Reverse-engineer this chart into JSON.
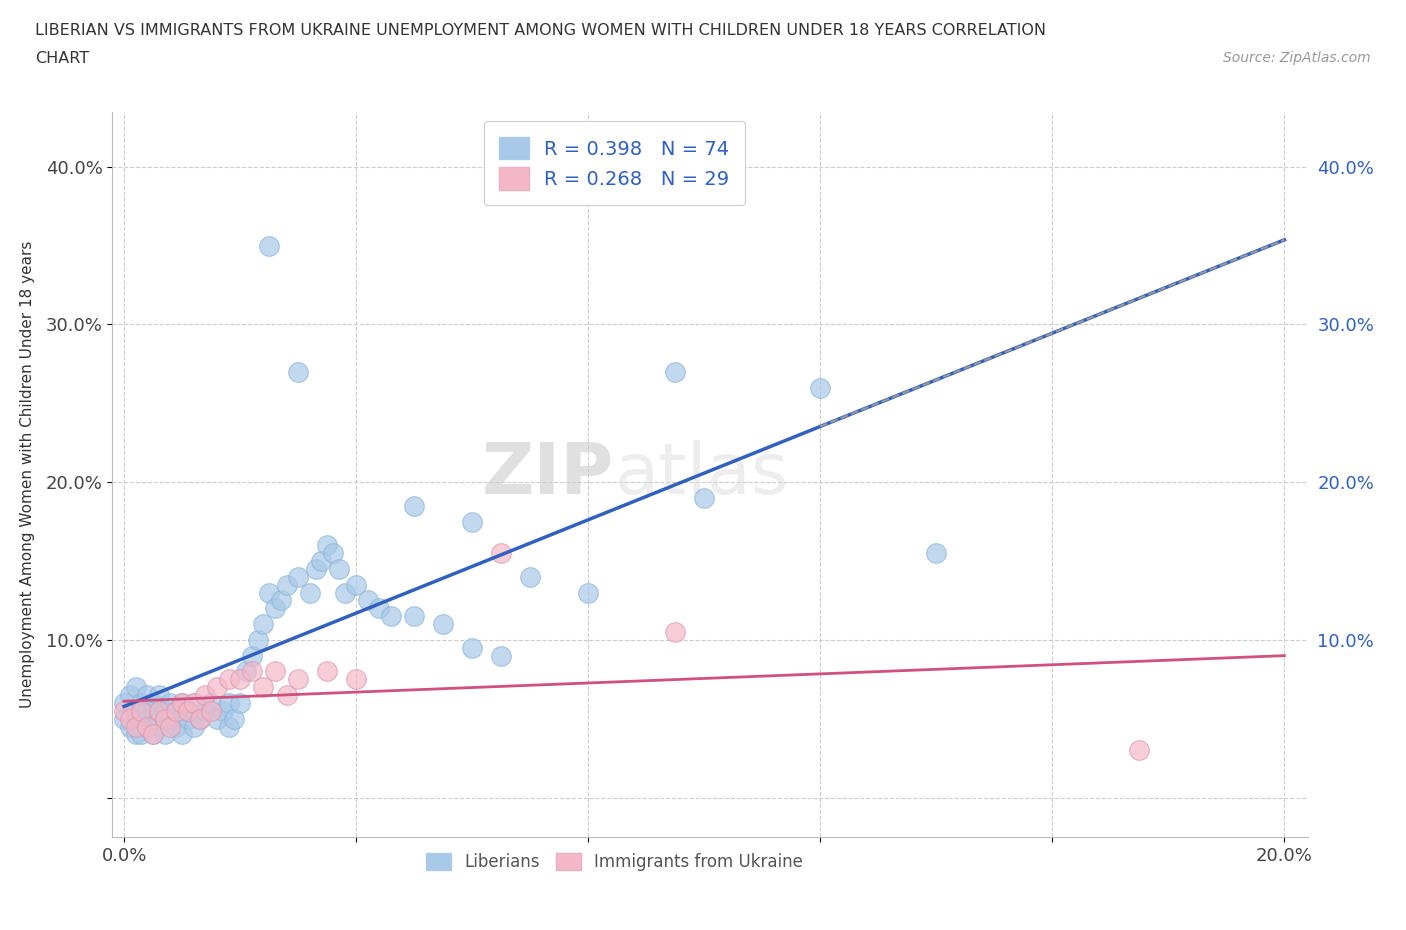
{
  "title_line1": "LIBERIAN VS IMMIGRANTS FROM UKRAINE UNEMPLOYMENT AMONG WOMEN WITH CHILDREN UNDER 18 YEARS CORRELATION",
  "title_line2": "CHART",
  "source": "Source: ZipAtlas.com",
  "ylabel": "Unemployment Among Women with Children Under 18 years",
  "xlim": [
    0.0,
    0.2
  ],
  "ylim": [
    0.0,
    0.42
  ],
  "liberian_color": "#a8c8e8",
  "ukraine_color": "#f4b8c8",
  "liberian_R": 0.398,
  "liberian_N": 74,
  "ukraine_R": 0.268,
  "ukraine_N": 29,
  "liberian_line_color": "#3060c0",
  "ukraine_line_color": "#d05080",
  "legend_text_color": "#3060c0",
  "background_color": "#ffffff",
  "liberian_x": [
    0.0,
    0.0,
    0.001,
    0.001,
    0.002,
    0.002,
    0.002,
    0.003,
    0.003,
    0.003,
    0.004,
    0.004,
    0.004,
    0.005,
    0.005,
    0.005,
    0.006,
    0.006,
    0.006,
    0.007,
    0.007,
    0.008,
    0.008,
    0.009,
    0.009,
    0.01,
    0.01,
    0.011,
    0.011,
    0.012,
    0.012,
    0.013,
    0.014,
    0.015,
    0.016,
    0.017,
    0.018,
    0.018,
    0.019,
    0.02,
    0.021,
    0.022,
    0.023,
    0.024,
    0.025,
    0.026,
    0.027,
    0.028,
    0.03,
    0.032,
    0.033,
    0.034,
    0.035,
    0.036,
    0.037,
    0.038,
    0.04,
    0.042,
    0.044,
    0.046,
    0.05,
    0.055,
    0.06,
    0.065,
    0.07,
    0.08,
    0.095,
    0.1,
    0.12,
    0.14,
    0.025,
    0.03,
    0.05,
    0.06
  ],
  "liberian_y": [
    0.06,
    0.05,
    0.065,
    0.045,
    0.055,
    0.04,
    0.07,
    0.05,
    0.06,
    0.04,
    0.055,
    0.045,
    0.065,
    0.04,
    0.055,
    0.06,
    0.05,
    0.045,
    0.065,
    0.04,
    0.055,
    0.05,
    0.06,
    0.045,
    0.055,
    0.04,
    0.06,
    0.05,
    0.055,
    0.045,
    0.06,
    0.05,
    0.055,
    0.06,
    0.05,
    0.055,
    0.045,
    0.06,
    0.05,
    0.06,
    0.08,
    0.09,
    0.1,
    0.11,
    0.13,
    0.12,
    0.125,
    0.135,
    0.14,
    0.13,
    0.145,
    0.15,
    0.16,
    0.155,
    0.145,
    0.13,
    0.135,
    0.125,
    0.12,
    0.115,
    0.115,
    0.11,
    0.095,
    0.09,
    0.14,
    0.13,
    0.27,
    0.19,
    0.26,
    0.155,
    0.35,
    0.27,
    0.185,
    0.175
  ],
  "ukraine_x": [
    0.0,
    0.001,
    0.002,
    0.003,
    0.004,
    0.005,
    0.006,
    0.007,
    0.008,
    0.009,
    0.01,
    0.011,
    0.012,
    0.013,
    0.014,
    0.015,
    0.016,
    0.018,
    0.02,
    0.022,
    0.024,
    0.026,
    0.028,
    0.03,
    0.035,
    0.04,
    0.065,
    0.095,
    0.175
  ],
  "ukraine_y": [
    0.055,
    0.05,
    0.045,
    0.055,
    0.045,
    0.04,
    0.055,
    0.05,
    0.045,
    0.055,
    0.06,
    0.055,
    0.06,
    0.05,
    0.065,
    0.055,
    0.07,
    0.075,
    0.075,
    0.08,
    0.07,
    0.08,
    0.065,
    0.075,
    0.08,
    0.075,
    0.155,
    0.105,
    0.03
  ]
}
